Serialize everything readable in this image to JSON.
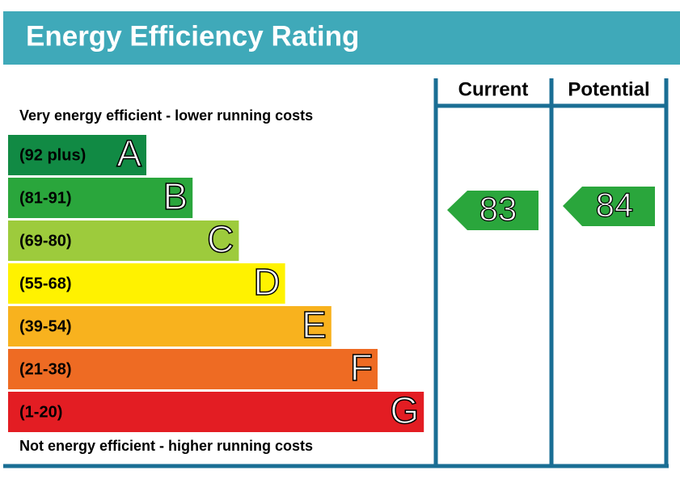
{
  "title": "Energy Efficiency Rating",
  "columns": [
    "Current",
    "Potential"
  ],
  "top_note": "Very energy efficient - lower running costs",
  "bottom_note": "Not energy efficient - higher running costs",
  "bands": [
    {
      "range": "(92 plus)",
      "letter": "A",
      "color": "#118a44"
    },
    {
      "range": "(81-91)",
      "letter": "B",
      "color": "#2aa63c"
    },
    {
      "range": "(69-80)",
      "letter": "C",
      "color": "#9dcb3c"
    },
    {
      "range": "(55-68)",
      "letter": "D",
      "color": "#fff200"
    },
    {
      "range": "(39-54)",
      "letter": "E",
      "color": "#f8b21e"
    },
    {
      "range": "(21-38)",
      "letter": "F",
      "color": "#ee6b23"
    },
    {
      "range": "(1-20)",
      "letter": "G",
      "color": "#e31d23"
    }
  ],
  "current": {
    "value": 83,
    "color": "#2aa63c"
  },
  "potential": {
    "value": 84,
    "color": "#2aa63c"
  }
}
